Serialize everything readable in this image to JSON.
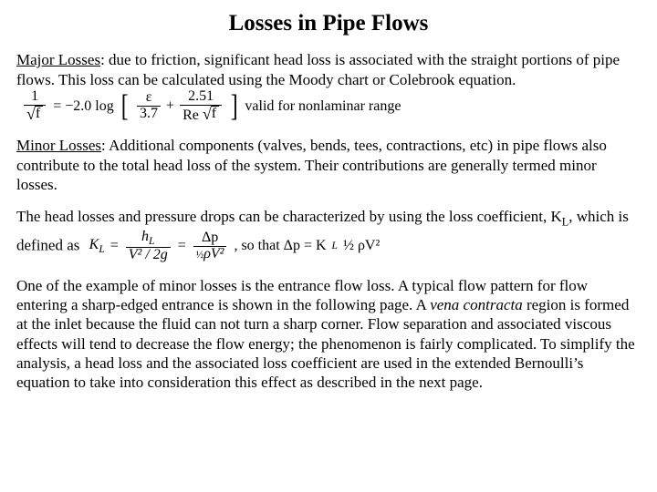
{
  "title": "Losses in Pipe Flows",
  "major": {
    "label": "Major Losses",
    "text": ": due to friction, significant head loss is associated with the straight portions of pipe flows.  This loss can be calculated using the Moody chart or Colebrook equation."
  },
  "eq1": {
    "lhs_num": "1",
    "lhs_den_sym": "f",
    "eq": "= −2.0 log",
    "term1_num": "ε",
    "term1_den": "3.7",
    "plus": "+",
    "term2_num": "2.51",
    "term2_den_a": "Re",
    "term2_den_b": "f",
    "note": "valid for nonlaminar range"
  },
  "minor": {
    "label": "Minor Losses",
    "text": ": Additional components (valves, bends, tees, contractions, etc) in pipe flows also contribute to the total head loss of the system.  Their contributions are generally termed minor losses."
  },
  "coeff": {
    "line1": "The head losses and pressure drops can be characterized by using the loss coefficient, K",
    "sub": "L",
    "line1b": ", which is defined as"
  },
  "eq2": {
    "K": "K",
    "Ksub": "L",
    "eq": "=",
    "f1_num": "h",
    "f1_num_sub": "L",
    "f1_den": "V² / 2g",
    "f2_num": "Δp",
    "f2_den_pre": "½",
    "f2_den": "ρV²",
    "so": ", so that Δp = K",
    "tail": " ½ ρV²"
  },
  "para3": {
    "a": "One of the example of minor losses is the entrance flow loss.  A typical flow pattern for flow entering a sharp-edged entrance is shown in the following page.  A ",
    "vena": "vena contracta",
    "b": " region is formed at the inlet because the fluid can not turn a sharp corner.  Flow separation and associated viscous effects will tend to decrease the flow energy; the phenomenon is fairly complicated.  To simplify the analysis, a head loss and the associated loss coefficient are used in the extended Bernoulli’s equation to take into consideration this effect as described in the next page."
  }
}
